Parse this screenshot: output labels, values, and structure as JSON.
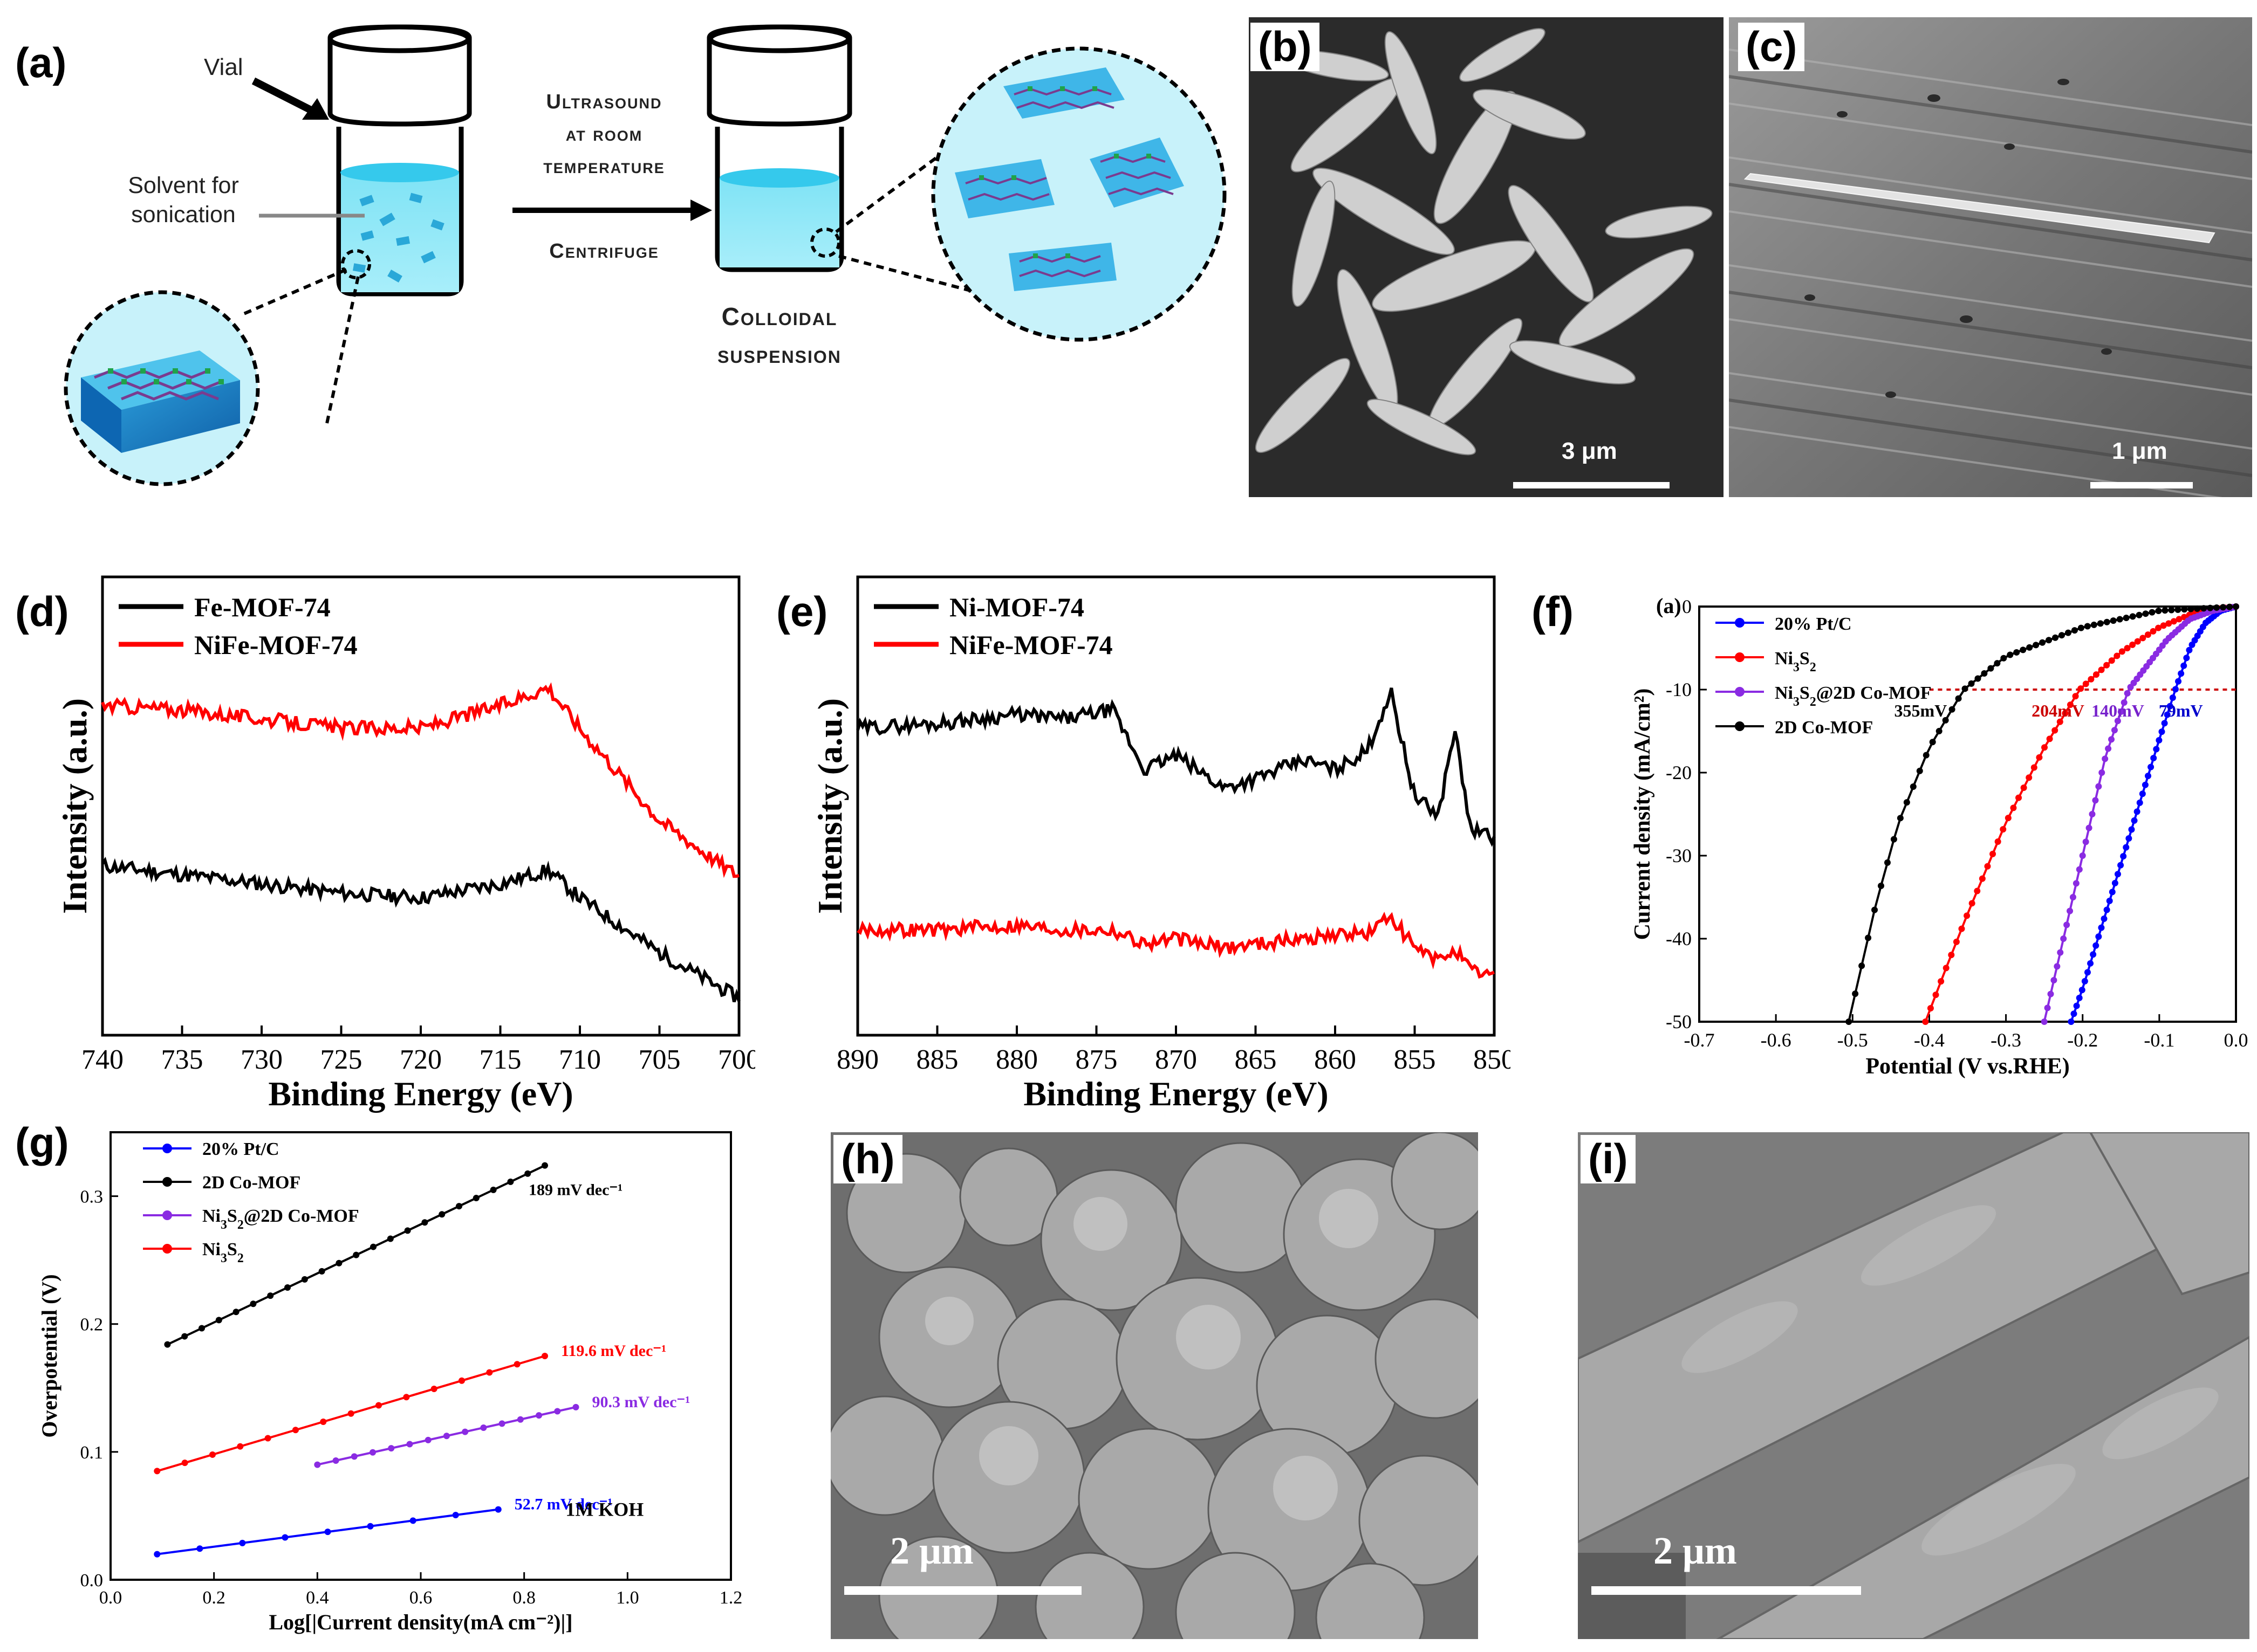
{
  "panels": {
    "a": {
      "label": "(a)",
      "vial_label": "Vial",
      "solvent_label_line1": "Solvent for",
      "solvent_label_line2": "sonication",
      "process_line1": "Ultrasound",
      "process_line2": "at room",
      "process_line3": "temperature",
      "process_line4": "Centrifuge",
      "result_line1": "Colloidal",
      "result_line2": "suspension"
    },
    "b": {
      "label": "(b)",
      "scale": "3 μm"
    },
    "c": {
      "label": "(c)",
      "scale": "1 μm"
    },
    "d": {
      "label": "(d)"
    },
    "e": {
      "label": "(e)"
    },
    "f": {
      "label": "(f)",
      "inner_label": "(a)"
    },
    "g": {
      "label": "(g)"
    },
    "h": {
      "label": "(h)",
      "scale": "2 μm"
    },
    "i": {
      "label": "(i)",
      "scale": "2 μm"
    }
  },
  "chart_data": [
    {
      "id": "d",
      "type": "line",
      "xlabel": "Binding Energy (eV)",
      "ylabel": "Intensity (a.u.)",
      "xlim": [
        740,
        700
      ],
      "xticks": [
        740,
        735,
        730,
        725,
        720,
        715,
        710,
        705,
        700
      ],
      "legend_position": "top-left",
      "series": [
        {
          "name": "Fe-MOF-74",
          "color": "#000000",
          "x": [
            740,
            735,
            730,
            725,
            720,
            715,
            712,
            710,
            705,
            700
          ],
          "y": [
            0.37,
            0.35,
            0.33,
            0.31,
            0.3,
            0.33,
            0.36,
            0.3,
            0.18,
            0.08
          ]
        },
        {
          "name": "NiFe-MOF-74",
          "color": "#ff0000",
          "x": [
            740,
            735,
            730,
            725,
            720,
            715,
            712,
            710,
            705,
            701,
            700
          ],
          "y": [
            0.72,
            0.71,
            0.69,
            0.67,
            0.67,
            0.72,
            0.76,
            0.67,
            0.47,
            0.37,
            0.35
          ]
        }
      ]
    },
    {
      "id": "e",
      "type": "line",
      "xlabel": "Binding Energy (eV)",
      "ylabel": "Intensity (a.u.)",
      "xlim": [
        890,
        850
      ],
      "xticks": [
        890,
        885,
        880,
        875,
        870,
        865,
        860,
        855,
        850
      ],
      "legend_position": "top-left",
      "series": [
        {
          "name": "Ni-MOF-74",
          "color": "#000000",
          "x": [
            890,
            885,
            880,
            877,
            874,
            872,
            870,
            867,
            865,
            862,
            860,
            858,
            856.5,
            855,
            853.5,
            852.5,
            851.5,
            850
          ],
          "y": [
            0.67,
            0.68,
            0.7,
            0.69,
            0.71,
            0.58,
            0.61,
            0.54,
            0.56,
            0.6,
            0.58,
            0.62,
            0.75,
            0.52,
            0.48,
            0.67,
            0.45,
            0.43
          ]
        },
        {
          "name": "NiFe-MOF-74",
          "color": "#ff0000",
          "x": [
            890,
            885,
            880,
            877,
            874,
            872,
            870,
            867,
            865,
            862,
            860,
            858,
            856.5,
            855,
            853.5,
            852.5,
            851.5,
            850
          ],
          "y": [
            0.23,
            0.23,
            0.24,
            0.23,
            0.23,
            0.2,
            0.21,
            0.19,
            0.2,
            0.21,
            0.22,
            0.22,
            0.26,
            0.19,
            0.16,
            0.19,
            0.14,
            0.13
          ]
        }
      ]
    },
    {
      "id": "f",
      "type": "line",
      "xlabel": "Potential (V vs.RHE)",
      "ylabel": "Current density (mA/cm²)",
      "xlim": [
        -0.7,
        0.0
      ],
      "ylim": [
        -50,
        0
      ],
      "xticks": [
        -0.7,
        -0.6,
        -0.5,
        -0.4,
        -0.3,
        -0.2,
        -0.1,
        0.0
      ],
      "yticks": [
        0,
        -10,
        -20,
        -30,
        -40,
        -50
      ],
      "legend_position": "top-left",
      "reference_line_y": -10,
      "annotations": [
        {
          "text": "355mV",
          "x": -0.355,
          "y": -10,
          "color": "#000000"
        },
        {
          "text": "204mV",
          "x": -0.204,
          "y": -10,
          "color": "#cc0000"
        },
        {
          "text": "140mV",
          "x": -0.14,
          "y": -10,
          "color": "#7722cc"
        },
        {
          "text": "79mV",
          "x": -0.079,
          "y": -10,
          "color": "#0000cc"
        }
      ],
      "series": [
        {
          "name": "20% Pt/C",
          "color": "#0000ff",
          "x": [
            0,
            -0.02,
            -0.04,
            -0.06,
            -0.079,
            -0.1,
            -0.12,
            -0.14,
            -0.16,
            -0.18,
            -0.2,
            -0.215
          ],
          "y": [
            0,
            -0.5,
            -2,
            -5,
            -10,
            -16,
            -22,
            -28,
            -34,
            -40,
            -46,
            -50
          ]
        },
        {
          "name": "Ni3S2",
          "color": "#ff0000",
          "x": [
            0,
            -0.05,
            -0.1,
            -0.15,
            -0.204,
            -0.25,
            -0.3,
            -0.35,
            -0.38,
            -0.405
          ],
          "y": [
            0,
            -0.6,
            -2.5,
            -5.5,
            -10,
            -17,
            -26,
            -37,
            -44,
            -50
          ]
        },
        {
          "name": "Ni3S2@2D Co-MOF",
          "color": "#8a2be2",
          "x": [
            0,
            -0.03,
            -0.06,
            -0.09,
            -0.115,
            -0.14,
            -0.17,
            -0.2,
            -0.225,
            -0.25
          ],
          "y": [
            0,
            -0.5,
            -1.5,
            -4,
            -7,
            -10,
            -18,
            -30,
            -40,
            -50
          ]
        },
        {
          "name": "2D Co-MOF",
          "color": "#000000",
          "x": [
            0,
            -0.1,
            -0.2,
            -0.3,
            -0.355,
            -0.4,
            -0.44,
            -0.47,
            -0.49,
            -0.505
          ],
          "y": [
            0,
            -0.5,
            -2.5,
            -6,
            -10,
            -17,
            -26,
            -36,
            -44,
            -50
          ]
        }
      ]
    },
    {
      "id": "g",
      "type": "line",
      "xlabel": "Log[|Current density(mA cm⁻²)|]",
      "ylabel": "Overpotential (V)",
      "xlim": [
        0.0,
        1.2
      ],
      "ylim": [
        0.0,
        0.35
      ],
      "xticks": [
        0.0,
        0.2,
        0.4,
        0.6,
        0.8,
        1.0,
        1.2
      ],
      "yticks": [
        0.0,
        0.1,
        0.2,
        0.3
      ],
      "legend_position": "top-left",
      "annotation": "1M KOH",
      "series": [
        {
          "name": "20% Pt/C",
          "color": "#0000ff",
          "slope_label": "52.7 mV dec⁻¹",
          "x": [
            0.09,
            0.75
          ],
          "y": [
            0.02,
            0.055
          ]
        },
        {
          "name": "2D Co-MOF",
          "color": "#000000",
          "slope_label": "189 mV dec⁻¹",
          "x": [
            0.11,
            0.84
          ],
          "y": [
            0.184,
            0.324
          ]
        },
        {
          "name": "Ni3S2@2D Co-MOF",
          "color": "#8a2be2",
          "slope_label": "90.3 mV dec⁻¹",
          "x": [
            0.4,
            0.9
          ],
          "y": [
            0.09,
            0.135
          ]
        },
        {
          "name": "Ni3S2",
          "color": "#ff0000",
          "slope_label": "119.6 mV dec⁻¹",
          "x": [
            0.09,
            0.84
          ],
          "y": [
            0.085,
            0.175
          ]
        }
      ]
    }
  ]
}
